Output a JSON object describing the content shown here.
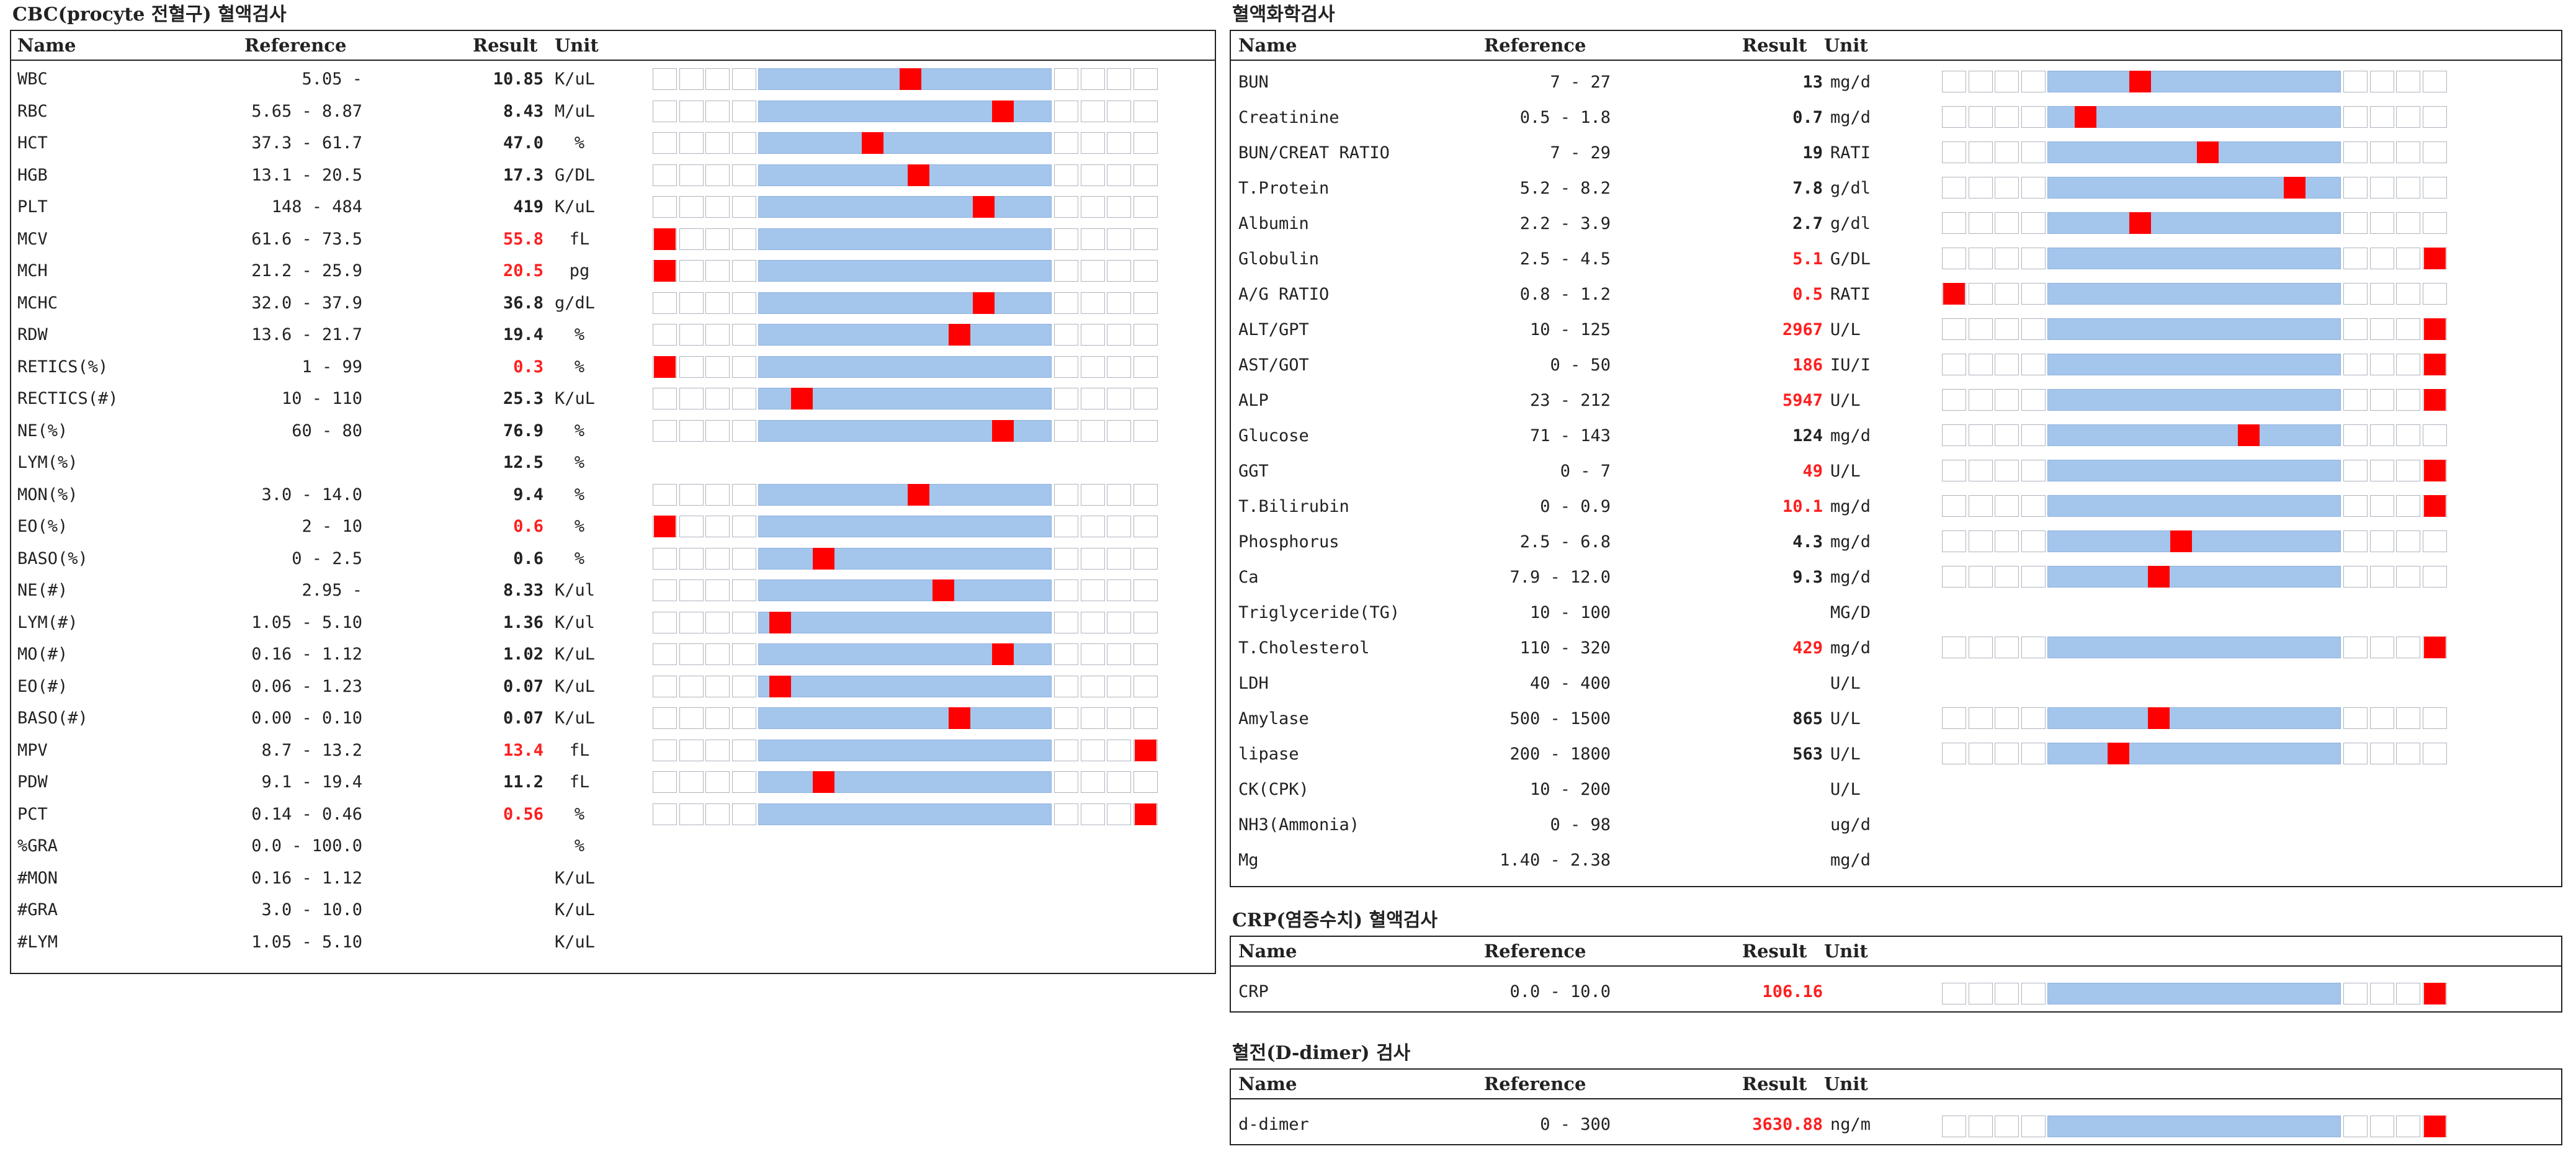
{
  "cbc": {
    "title": "CBC(procyte 전혈구) 혈액검사",
    "headers": {
      "name": "Name",
      "reference": "Reference",
      "result": "Result",
      "unit": "Unit"
    },
    "rows": [
      {
        "name": "WBC",
        "ref": "5.05 -",
        "result": "10.85",
        "unit": "K/uL",
        "flag": "normal",
        "level": 0.52
      },
      {
        "name": "RBC",
        "ref": "5.65 - 8.87",
        "result": "8.43",
        "unit": "M/uL",
        "flag": "normal",
        "level": 0.86
      },
      {
        "name": "HCT",
        "ref": "37.3 - 61.7",
        "result": "47.0",
        "unit": "%",
        "flag": "normal",
        "level": 0.38
      },
      {
        "name": "HGB",
        "ref": "13.1 - 20.5",
        "result": "17.3",
        "unit": "G/DL",
        "flag": "normal",
        "level": 0.55
      },
      {
        "name": "PLT",
        "ref": "148 - 484",
        "result": "419",
        "unit": "K/uL",
        "flag": "normal",
        "level": 0.79
      },
      {
        "name": "MCV",
        "ref": "61.6 - 73.5",
        "result": "55.8",
        "unit": "fL",
        "flag": "low",
        "level": 0.0
      },
      {
        "name": "MCH",
        "ref": "21.2 - 25.9",
        "result": "20.5",
        "unit": "pg",
        "flag": "low",
        "level": 0.09
      },
      {
        "name": "MCHC",
        "ref": "32.0 - 37.9",
        "result": "36.8",
        "unit": "g/dL",
        "flag": "normal",
        "level": 0.79
      },
      {
        "name": "RDW",
        "ref": "13.6 - 21.7",
        "result": "19.4",
        "unit": "%",
        "flag": "normal",
        "level": 0.7
      },
      {
        "name": "RETICS(%)",
        "ref": "1 - 99",
        "result": "0.3",
        "unit": "%",
        "flag": "low",
        "level": 0.13
      },
      {
        "name": "RECTICS(#)",
        "ref": "10 - 110",
        "result": "25.3",
        "unit": "K/uL",
        "flag": "normal",
        "level": 0.12
      },
      {
        "name": "NE(%)",
        "ref": "60 - 80",
        "result": "76.9",
        "unit": "%",
        "flag": "normal",
        "level": 0.86
      },
      {
        "name": "LYM(%)",
        "ref": "",
        "result": "12.5",
        "unit": "%",
        "flag": "none",
        "level": null
      },
      {
        "name": "MON(%)",
        "ref": "3.0 - 14.0",
        "result": "9.4",
        "unit": "%",
        "flag": "normal",
        "level": 0.55
      },
      {
        "name": "EO(%)",
        "ref": "2 - 10",
        "result": "0.6",
        "unit": "%",
        "flag": "low",
        "level": 0.04
      },
      {
        "name": "BASO(%)",
        "ref": "0 - 2.5",
        "result": "0.6",
        "unit": "%",
        "flag": "normal",
        "level": 0.2
      },
      {
        "name": "NE(#)",
        "ref": "2.95 -",
        "result": "8.33",
        "unit": "K/ul",
        "flag": "normal",
        "level": 0.64
      },
      {
        "name": "LYM(#)",
        "ref": "1.05 - 5.10",
        "result": "1.36",
        "unit": "K/ul",
        "flag": "normal",
        "level": 0.04
      },
      {
        "name": "MO(#)",
        "ref": "0.16 - 1.12",
        "result": "1.02",
        "unit": "K/uL",
        "flag": "normal",
        "level": 0.86
      },
      {
        "name": "EO(#)",
        "ref": "0.06 - 1.23",
        "result": "0.07",
        "unit": "K/uL",
        "flag": "normal",
        "level": 0.04
      },
      {
        "name": "BASO(#)",
        "ref": "0.00 - 0.10",
        "result": "0.07",
        "unit": "K/uL",
        "flag": "normal",
        "level": 0.7
      },
      {
        "name": "MPV",
        "ref": "8.7 - 13.2",
        "result": "13.4",
        "unit": "fL",
        "flag": "high",
        "level": 1.0
      },
      {
        "name": "PDW",
        "ref": "9.1 - 19.4",
        "result": "11.2",
        "unit": "fL",
        "flag": "normal",
        "level": 0.2
      },
      {
        "name": "PCT",
        "ref": "0.14 - 0.46",
        "result": "0.56",
        "unit": "%",
        "flag": "high",
        "level": 1.0
      },
      {
        "name": "%GRA",
        "ref": "0.0 - 100.0",
        "result": "",
        "unit": "%",
        "flag": "none",
        "level": null
      },
      {
        "name": "#MON",
        "ref": "0.16 - 1.12",
        "result": "",
        "unit": "K/uL",
        "flag": "none",
        "level": null
      },
      {
        "name": "#GRA",
        "ref": "3.0 - 10.0",
        "result": "",
        "unit": "K/uL",
        "flag": "none",
        "level": null
      },
      {
        "name": "#LYM",
        "ref": "1.05 - 5.10",
        "result": "",
        "unit": "K/uL",
        "flag": "none",
        "level": null
      }
    ]
  },
  "chem": {
    "title": "혈액화학검사",
    "headers": {
      "name": "Name",
      "reference": "Reference",
      "result": "Result",
      "unit": "Unit"
    },
    "rows": [
      {
        "name": "BUN",
        "ref": "7 - 27",
        "result": "13",
        "unit": "mg/d",
        "flag": "normal",
        "level": 0.3
      },
      {
        "name": "Creatinine",
        "ref": "0.5 - 1.8",
        "result": "0.7",
        "unit": "mg/d",
        "flag": "normal",
        "level": 0.1
      },
      {
        "name": "BUN/CREAT RATIO",
        "ref": "7 - 29",
        "result": "19",
        "unit": "RATI",
        "flag": "normal",
        "level": 0.55
      },
      {
        "name": "T.Protein",
        "ref": "5.2 - 8.2",
        "result": "7.8",
        "unit": "g/dl",
        "flag": "normal",
        "level": 0.87
      },
      {
        "name": "Albumin",
        "ref": "2.2 - 3.9",
        "result": "2.7",
        "unit": "g/dl",
        "flag": "normal",
        "level": 0.3
      },
      {
        "name": "Globulin",
        "ref": "2.5 - 4.5",
        "result": "5.1",
        "unit": "G/DL",
        "flag": "high",
        "level": 1.0
      },
      {
        "name": "A/G RATIO",
        "ref": "0.8 - 1.2",
        "result": "0.5",
        "unit": "RATI",
        "flag": "low",
        "level": 0.0
      },
      {
        "name": "ALT/GPT",
        "ref": "10 - 125",
        "result": "2967",
        "unit": "U/L",
        "flag": "high",
        "level": 1.0
      },
      {
        "name": "AST/GOT",
        "ref": "0 - 50",
        "result": "186",
        "unit": "IU/I",
        "flag": "high",
        "level": 1.0
      },
      {
        "name": "ALP",
        "ref": "23 - 212",
        "result": "5947",
        "unit": "U/L",
        "flag": "high",
        "level": 1.0
      },
      {
        "name": "Glucose",
        "ref": "71 - 143",
        "result": "124",
        "unit": "mg/d",
        "flag": "normal",
        "level": 0.7
      },
      {
        "name": "GGT",
        "ref": "0 - 7",
        "result": "49",
        "unit": "U/L",
        "flag": "high",
        "level": 1.0
      },
      {
        "name": "T.Bilirubin",
        "ref": "0 - 0.9",
        "result": "10.1",
        "unit": "mg/d",
        "flag": "high",
        "level": 1.0
      },
      {
        "name": "Phosphorus",
        "ref": "2.5 - 6.8",
        "result": "4.3",
        "unit": "mg/d",
        "flag": "normal",
        "level": 0.45
      },
      {
        "name": "Ca",
        "ref": "7.9 - 12.0",
        "result": "9.3",
        "unit": "mg/d",
        "flag": "normal",
        "level": 0.37
      },
      {
        "name": "Triglyceride(TG)",
        "ref": "10 - 100",
        "result": "",
        "unit": "MG/D",
        "flag": "none",
        "level": null
      },
      {
        "name": "T.Cholesterol",
        "ref": "110 - 320",
        "result": "429",
        "unit": "mg/d",
        "flag": "high",
        "level": 1.0
      },
      {
        "name": "LDH",
        "ref": "40 - 400",
        "result": "",
        "unit": "U/L",
        "flag": "none",
        "level": null
      },
      {
        "name": "Amylase",
        "ref": "500 - 1500",
        "result": "865",
        "unit": "U/L",
        "flag": "normal",
        "level": 0.37
      },
      {
        "name": "lipase",
        "ref": "200 - 1800",
        "result": "563",
        "unit": "U/L",
        "flag": "normal",
        "level": 0.22
      },
      {
        "name": "CK(CPK)",
        "ref": "10 - 200",
        "result": "",
        "unit": "U/L",
        "flag": "none",
        "level": null
      },
      {
        "name": "NH3(Ammonia)",
        "ref": "0 - 98",
        "result": "",
        "unit": "ug/d",
        "flag": "none",
        "level": null
      },
      {
        "name": "Mg",
        "ref": "1.40 - 2.38",
        "result": "",
        "unit": "mg/d",
        "flag": "none",
        "level": null
      }
    ]
  },
  "crp": {
    "title": "CRP(염증수치) 혈액검사",
    "headers": {
      "name": "Name",
      "reference": "Reference",
      "result": "Result",
      "unit": "Unit"
    },
    "rows": [
      {
        "name": "CRP",
        "ref": "0.0 - 10.0",
        "result": "106.16",
        "unit": "",
        "flag": "high",
        "level": 1.0
      }
    ]
  },
  "ddimer": {
    "title": "혈전(D-dimer) 검사",
    "headers": {
      "name": "Name",
      "reference": "Reference",
      "result": "Result",
      "unit": "Unit"
    },
    "rows": [
      {
        "name": "d-dimer",
        "ref": "0 - 300",
        "result": "3630.88",
        "unit": "ng/m",
        "flag": "high",
        "level": 1.0
      }
    ]
  },
  "colors": {
    "marker": "#ff0000",
    "normal_range": "#a4c5ec",
    "abnormal_text": "#ff1e1e"
  }
}
